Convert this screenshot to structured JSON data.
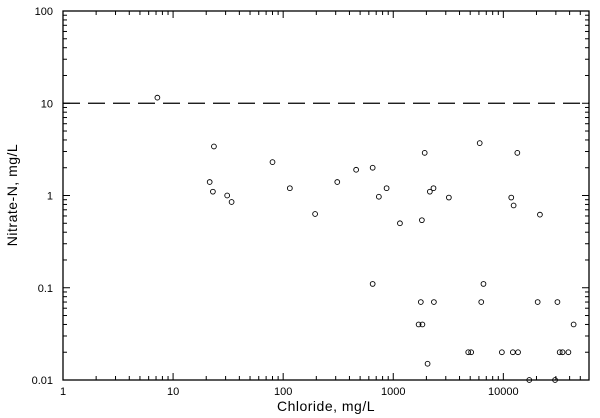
{
  "chart_data": {
    "type": "scatter",
    "title": "",
    "xlabel": "Chloride, mg/L",
    "ylabel": "Nitrate-N, mg/L",
    "x_scale": "log",
    "y_scale": "log",
    "xlim": [
      1,
      60000
    ],
    "ylim": [
      0.01,
      100
    ],
    "x_tick_labels": [
      {
        "value": 1,
        "label": "1"
      },
      {
        "value": 10,
        "label": "10"
      },
      {
        "value": 100,
        "label": "100"
      },
      {
        "value": 1000,
        "label": "1000"
      },
      {
        "value": 10000,
        "label": "10000"
      }
    ],
    "y_tick_labels": [
      {
        "value": 0.01,
        "label": "0.01"
      },
      {
        "value": 0.1,
        "label": "0.1"
      },
      {
        "value": 1,
        "label": "1"
      },
      {
        "value": 10,
        "label": "10"
      },
      {
        "value": 100,
        "label": "100"
      }
    ],
    "reference_line": {
      "y": 10,
      "style": "dashed"
    },
    "grid": false,
    "marker": "open-circle",
    "series": [
      {
        "points": [
          [
            7.2,
            11.5
          ],
          [
            21.5,
            1.4
          ],
          [
            23,
            1.1
          ],
          [
            23.5,
            3.4
          ],
          [
            31,
            1.0
          ],
          [
            34,
            0.85
          ],
          [
            80,
            2.3
          ],
          [
            115,
            1.2
          ],
          [
            195,
            0.63
          ],
          [
            310,
            1.4
          ],
          [
            460,
            1.9
          ],
          [
            650,
            2.0
          ],
          [
            650,
            0.11
          ],
          [
            740,
            0.97
          ],
          [
            870,
            1.2
          ],
          [
            1150,
            0.5
          ],
          [
            1700,
            0.04
          ],
          [
            1780,
            0.07
          ],
          [
            1840,
            0.04
          ],
          [
            1820,
            0.54
          ],
          [
            1930,
            2.9
          ],
          [
            2050,
            0.015
          ],
          [
            2150,
            1.1
          ],
          [
            2320,
            1.2
          ],
          [
            2340,
            0.07
          ],
          [
            3200,
            0.95
          ],
          [
            4800,
            0.02
          ],
          [
            5100,
            0.02
          ],
          [
            6100,
            3.7
          ],
          [
            6300,
            0.07
          ],
          [
            6600,
            0.11
          ],
          [
            9700,
            0.02
          ],
          [
            11800,
            0.95
          ],
          [
            12200,
            0.02
          ],
          [
            12400,
            0.78
          ],
          [
            13400,
            2.9
          ],
          [
            13600,
            0.02
          ],
          [
            17200,
            0.01
          ],
          [
            20500,
            0.07
          ],
          [
            21500,
            0.62
          ],
          [
            29500,
            0.01
          ],
          [
            31000,
            0.07
          ],
          [
            32500,
            0.02
          ],
          [
            34500,
            0.02
          ],
          [
            39000,
            0.02
          ],
          [
            43500,
            0.04
          ]
        ]
      }
    ]
  }
}
